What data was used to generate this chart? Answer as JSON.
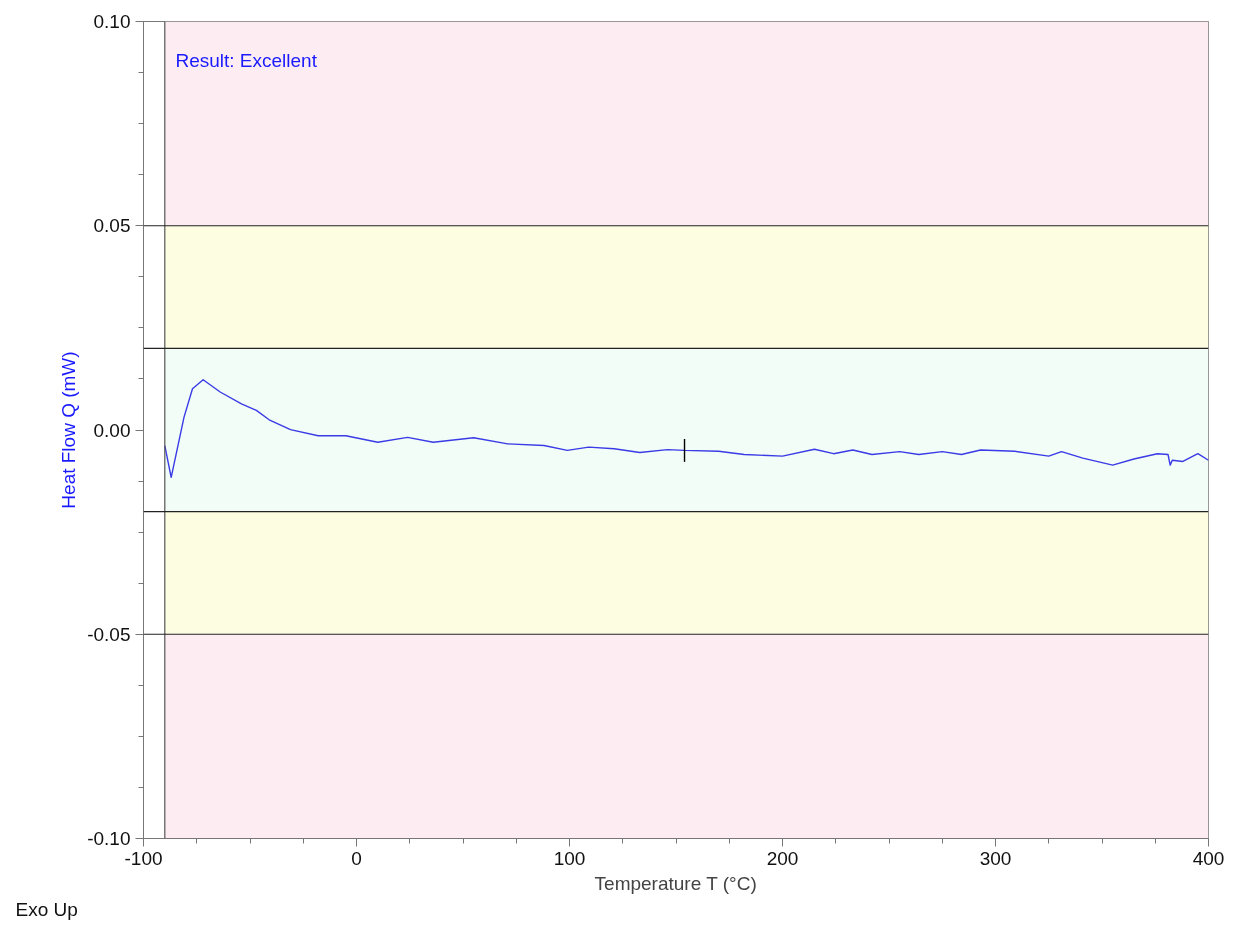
{
  "chart_data": {
    "type": "line",
    "xlabel": "Temperature T (°C)",
    "ylabel": "Heat Flow Q (mW)",
    "annotations": [
      "Result: Excellent",
      "Exo Up"
    ],
    "series": [
      {
        "color": "#3a3ae6",
        "x": [
          -90,
          -87,
          -81,
          -77,
          -72,
          -64,
          -54,
          -47,
          -41,
          -31,
          -18,
          -5,
          10,
          24,
          36,
          55,
          71,
          88,
          99,
          109,
          121,
          133,
          146,
          154,
          170,
          182,
          200,
          215,
          224,
          233,
          242,
          255,
          264,
          275,
          284,
          293,
          309,
          325,
          331,
          341,
          355,
          365,
          376,
          381,
          382,
          383,
          388,
          395,
          400
        ],
        "values": [
          -0.0038,
          -0.0116,
          0.0031,
          0.0101,
          0.0123,
          0.0093,
          0.0064,
          0.0048,
          0.0025,
          0.0001,
          -0.0014,
          -0.0014,
          -0.003,
          -0.0018,
          -0.003,
          -0.0019,
          -0.0034,
          -0.0038,
          -0.005,
          -0.0042,
          -0.0046,
          -0.0055,
          -0.0048,
          -0.005,
          -0.0052,
          -0.006,
          -0.0064,
          -0.0047,
          -0.0058,
          -0.0049,
          -0.006,
          -0.0053,
          -0.006,
          -0.0053,
          -0.006,
          -0.0049,
          -0.0052,
          -0.0064,
          -0.0053,
          -0.0069,
          -0.0086,
          -0.0071,
          -0.0058,
          -0.006,
          -0.0086,
          -0.0074,
          -0.0077,
          -0.0058,
          -0.0074
        ]
      },
      {
        "color": "#000000",
        "x": [
          154,
          154
        ],
        "values": [
          -0.0078,
          -0.0022
        ]
      }
    ],
    "xlim": [
      -100,
      400
    ],
    "ylim": [
      -0.1,
      0.1
    ],
    "xticks": [
      -100,
      {
        "value": -75,
        "label": null
      },
      {
        "value": -50,
        "label": null
      },
      {
        "value": -25,
        "label": null
      },
      0,
      {
        "value": 25,
        "label": null
      },
      {
        "value": 50,
        "label": null
      },
      {
        "value": 75,
        "label": null
      },
      100,
      {
        "value": 125,
        "label": null
      },
      {
        "value": 150,
        "label": null
      },
      {
        "value": 175,
        "label": null
      },
      200,
      {
        "value": 225,
        "label": null
      },
      {
        "value": 250,
        "label": null
      },
      {
        "value": 275,
        "label": null
      },
      300,
      {
        "value": 325,
        "label": null
      },
      {
        "value": 350,
        "label": null
      },
      {
        "value": 375,
        "label": null
      },
      400
    ],
    "yticks": [
      {
        "value": -0.1,
        "label": "-0.10"
      },
      {
        "value": -0.0875,
        "label": null
      },
      {
        "value": -0.075,
        "label": null
      },
      {
        "value": -0.0625,
        "label": null
      },
      -0.05,
      {
        "value": -0.0375,
        "label": null
      },
      {
        "value": -0.025,
        "label": null
      },
      {
        "value": -0.0125,
        "label": null
      },
      {
        "value": 0,
        "label": "0.00"
      },
      {
        "value": 0.0125,
        "label": null
      },
      {
        "value": 0.025,
        "label": null
      },
      {
        "value": 0.0375,
        "label": null
      },
      0.05,
      {
        "value": 0.0625,
        "label": null
      },
      {
        "value": 0.075,
        "label": null
      },
      {
        "value": 0.0875,
        "label": null
      },
      {
        "value": 0.1,
        "label": "0.10"
      }
    ],
    "bands": [
      {
        "axis": "y",
        "from": -0.1,
        "to": -0.05,
        "color": "#fdedf2"
      },
      {
        "axis": "y",
        "from": -0.05,
        "to": -0.02,
        "color": "#fdfde2"
      },
      {
        "axis": "y",
        "from": -0.02,
        "to": 0.02,
        "color": "#f1fdf6"
      },
      {
        "axis": "y",
        "from": 0.02,
        "to": 0.05,
        "color": "#fdfde2"
      },
      {
        "axis": "y",
        "from": 0.05,
        "to": 0.1,
        "color": "#fdedf2"
      }
    ],
    "ref_lines": [
      {
        "axis": "x",
        "value": -90,
        "color": "#555555"
      },
      {
        "axis": "y",
        "value": -0.05,
        "color": "#222222"
      },
      {
        "axis": "y",
        "value": -0.02,
        "color": "#222222"
      },
      {
        "axis": "y",
        "value": 0.02,
        "color": "#222222"
      },
      {
        "axis": "y",
        "value": 0.05,
        "color": "#222222"
      }
    ],
    "grid": false,
    "marker": "none",
    "line_style": "solid"
  }
}
